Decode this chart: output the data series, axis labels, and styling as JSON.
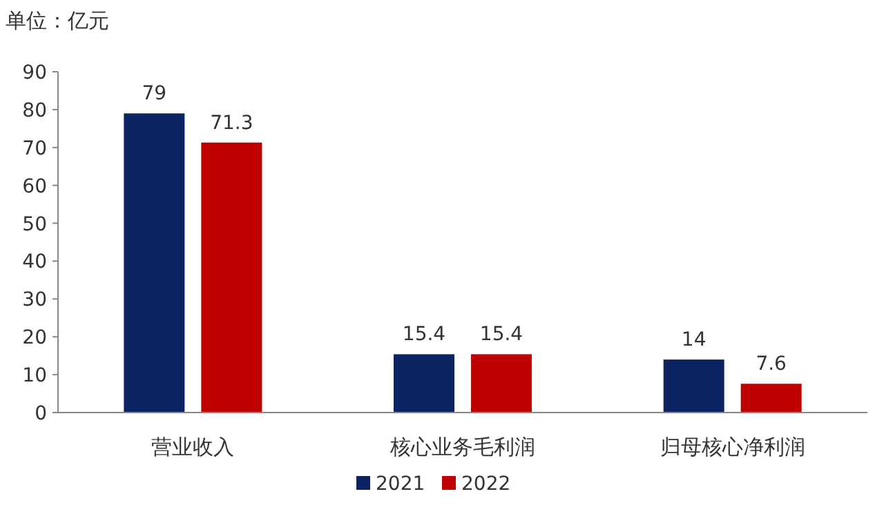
{
  "chart_data": {
    "type": "bar",
    "ylabel": "单位：亿元",
    "categories": [
      "营业收入",
      "核心业务毛利润",
      "归母核心净利润"
    ],
    "series": [
      {
        "name": "2021",
        "color": "#0c2461",
        "values": [
          79,
          15.4,
          14
        ]
      },
      {
        "name": "2022",
        "color": "#c00000",
        "values": [
          71.3,
          15.4,
          7.6
        ]
      }
    ],
    "ylim": [
      0,
      90
    ],
    "yticks": [
      0,
      10,
      20,
      30,
      40,
      50,
      60,
      70,
      80,
      90
    ],
    "data_labels": true,
    "legend": "bottom",
    "grid": false
  }
}
